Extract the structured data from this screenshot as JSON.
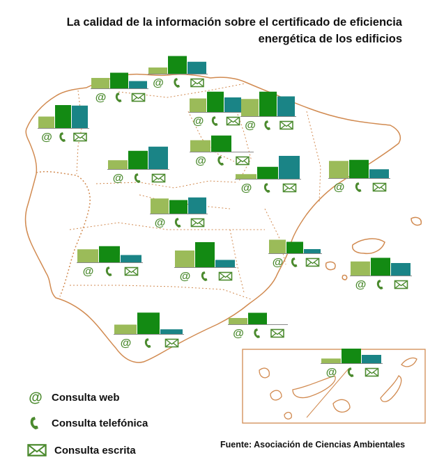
{
  "title": {
    "line1": "La calidad de la información sobre el certificado de eficiencia",
    "line2": "energética de los edificios"
  },
  "legend": {
    "web": "Consulta web",
    "phone": "Consulta telefónica",
    "written": "Consulta escrita"
  },
  "source": "Fuente: Asociación de Ciencias Ambientales",
  "colors": {
    "web": "#9bbb59",
    "phone": "#138a13",
    "written": "#1a8486",
    "outline": "#d18a50",
    "icon": "#4b8a2e",
    "baseline": "#888888"
  },
  "icons": {
    "web": "at-icon",
    "phone": "phone-icon",
    "written": "envelope-icon"
  },
  "chart_data": {
    "type": "bar",
    "categories": [
      "Consulta web",
      "Consulta telefónica",
      "Consulta escrita"
    ],
    "regions": [
      {
        "id": "galicia",
        "values": [
          22,
          44,
          43
        ]
      },
      {
        "id": "asturias",
        "values": [
          20,
          30,
          14
        ]
      },
      {
        "id": "cantabria",
        "values": [
          12,
          34,
          23
        ]
      },
      {
        "id": "pais-vasco",
        "values": [
          26,
          39,
          28
        ]
      },
      {
        "id": "navarra",
        "values": [
          33,
          47,
          38
        ]
      },
      {
        "id": "castilla-y-leon",
        "values": [
          17,
          35,
          43
        ]
      },
      {
        "id": "la-rioja",
        "values": [
          22,
          31,
          0
        ]
      },
      {
        "id": "aragon",
        "values": [
          9,
          23,
          44
        ]
      },
      {
        "id": "cataluna",
        "values": [
          33,
          35,
          17
        ]
      },
      {
        "id": "madrid",
        "values": [
          29,
          26,
          31
        ]
      },
      {
        "id": "extremadura",
        "values": [
          25,
          31,
          14
        ]
      },
      {
        "id": "castilla-la-mancha",
        "values": [
          32,
          48,
          14
        ]
      },
      {
        "id": "comunidad-valenciana",
        "values": [
          26,
          22,
          8
        ]
      },
      {
        "id": "islas-baleares",
        "values": [
          27,
          34,
          24
        ]
      },
      {
        "id": "andalucia",
        "values": [
          18,
          41,
          9
        ]
      },
      {
        "id": "murcia",
        "values": [
          12,
          22,
          0
        ]
      },
      {
        "id": "canarias",
        "values": [
          9,
          28,
          16
        ]
      }
    ]
  }
}
